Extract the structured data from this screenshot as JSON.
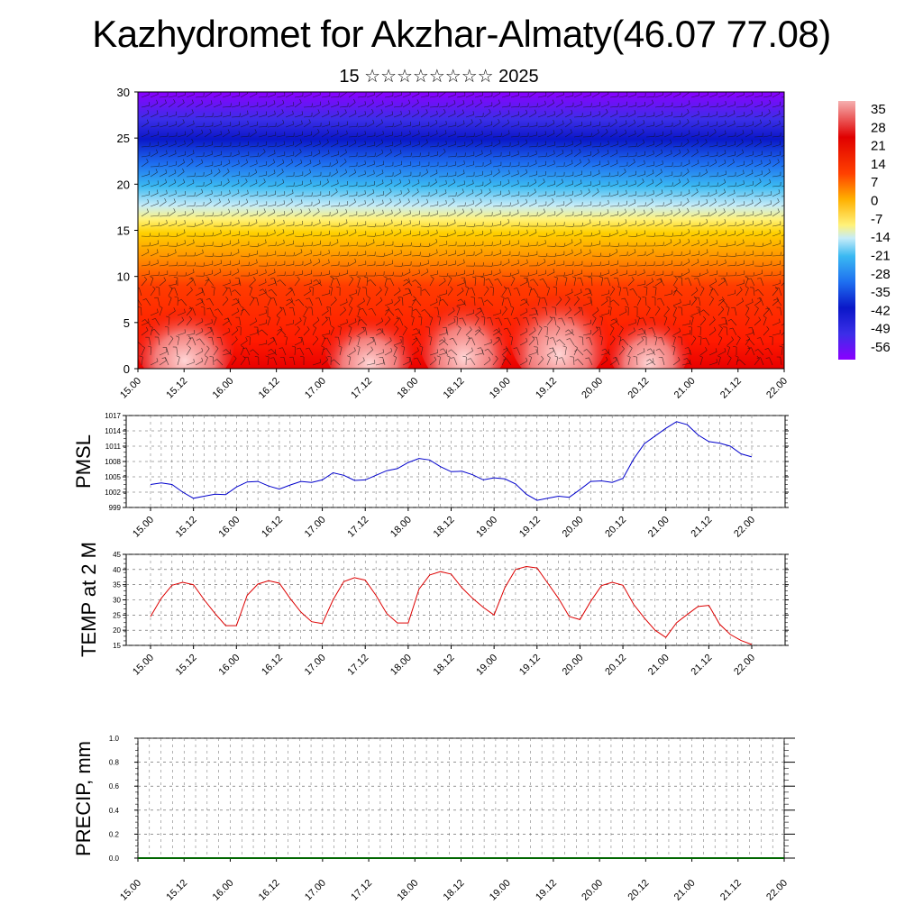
{
  "header": {
    "title": "Kazhydromet for Akzhar-Almaty(46.07 77.08)",
    "subtitle": "15 ☆☆☆☆☆☆☆☆ 2025"
  },
  "colorbar": {
    "labels": [
      "35",
      "28",
      "21",
      "14",
      "7",
      "0",
      "-7",
      "-14",
      "-21",
      "-28",
      "-35",
      "-42",
      "-49",
      "-56"
    ]
  },
  "chart_data": [
    {
      "type": "heatmap",
      "title": "",
      "ylabel": "",
      "ylim": [
        0,
        30
      ],
      "yticks": [
        "0",
        "5",
        "10",
        "15",
        "20",
        "25",
        "30"
      ],
      "xticks": [
        "15.00",
        "15.12",
        "16.00",
        "16.12",
        "17.00",
        "17.12",
        "18.00",
        "18.12",
        "19.00",
        "19.12",
        "20.00",
        "20.12",
        "21.00",
        "21.12",
        "22.00"
      ],
      "colorscale": [
        "#8b00ff",
        "#3b2ee8",
        "#0a17c8",
        "#1e6ff0",
        "#36b8f0",
        "#bfe8f5",
        "#fff06a",
        "#ffb000",
        "#ff4000",
        "#e00000",
        "#f5a0a0"
      ],
      "note_overlay": "wind barbs"
    },
    {
      "type": "line",
      "ylabel": "PMSL",
      "ylim": [
        999,
        1017
      ],
      "yticks": [
        "999",
        "1002",
        "1005",
        "1008",
        "1011",
        "1014",
        "1017"
      ],
      "xticks": [
        "15.00",
        "15.12",
        "16.00",
        "16.12",
        "17.00",
        "17.12",
        "18.00",
        "18.12",
        "19.00",
        "19.12",
        "20.00",
        "20.12",
        "21.00",
        "21.12",
        "22.00"
      ],
      "color": "#0000cc",
      "x": [
        0,
        3,
        6,
        9,
        12,
        15,
        18,
        21,
        24,
        27,
        30,
        33,
        36,
        39,
        42,
        45,
        48,
        51,
        54,
        57,
        60,
        63,
        66,
        69,
        72,
        75,
        78,
        81,
        84,
        87,
        90,
        93,
        96,
        99,
        102,
        105,
        108,
        111,
        114,
        117,
        120,
        123,
        126,
        129,
        132,
        135,
        138,
        141,
        144,
        147,
        150,
        153,
        156,
        159,
        162,
        165,
        168
      ],
      "values": [
        1003.5,
        1003.8,
        1003.5,
        1002.0,
        1000.8,
        1001.2,
        1001.6,
        1001.5,
        1003.0,
        1004.0,
        1004.1,
        1003.2,
        1002.6,
        1003.4,
        1004.1,
        1003.9,
        1004.4,
        1005.8,
        1005.3,
        1004.3,
        1004.4,
        1005.3,
        1006.2,
        1006.6,
        1007.8,
        1008.6,
        1008.3,
        1007.0,
        1006.0,
        1006.1,
        1005.4,
        1004.4,
        1004.8,
        1004.6,
        1003.6,
        1001.6,
        1000.4,
        1000.8,
        1001.2,
        1001.0,
        1002.5,
        1004.1,
        1004.2,
        1003.9,
        1004.7,
        1008.5,
        1011.5,
        1013.0,
        1014.5,
        1015.8,
        1015.2,
        1013.2,
        1011.9,
        1011.6,
        1011.0,
        1009.5,
        1008.9
      ]
    },
    {
      "type": "line",
      "ylabel": "TEMP at 2 M",
      "ylim": [
        15,
        45
      ],
      "yticks": [
        "15",
        "20",
        "25",
        "30",
        "35",
        "40",
        "45"
      ],
      "xticks": [
        "15.00",
        "15.12",
        "16.00",
        "16.12",
        "17.00",
        "17.12",
        "18.00",
        "18.12",
        "19.00",
        "19.12",
        "20.00",
        "20.12",
        "21.00",
        "21.12",
        "22.00"
      ],
      "color": "#dd0000",
      "x": [
        0,
        3,
        6,
        9,
        12,
        15,
        18,
        21,
        24,
        27,
        30,
        33,
        36,
        39,
        42,
        45,
        48,
        51,
        54,
        57,
        60,
        63,
        66,
        69,
        72,
        75,
        78,
        81,
        84,
        87,
        90,
        93,
        96,
        99,
        102,
        105,
        108,
        111,
        114,
        117,
        120,
        123,
        126,
        129,
        132,
        135,
        138,
        141,
        144,
        147,
        150,
        153,
        156,
        159,
        162,
        165,
        168
      ],
      "values": [
        24.5,
        30.5,
        34.8,
        35.8,
        35.0,
        30.0,
        25.5,
        21.5,
        21.5,
        31.5,
        35.2,
        36.3,
        35.5,
        30.5,
        26.0,
        22.8,
        22.2,
        30.0,
        36.0,
        37.3,
        36.5,
        31.5,
        25.5,
        22.4,
        22.4,
        33.5,
        38.2,
        39.3,
        38.5,
        34.0,
        30.5,
        27.5,
        25.0,
        34.0,
        40.0,
        41.0,
        40.5,
        35.5,
        30.5,
        24.5,
        23.5,
        29.5,
        34.7,
        35.8,
        34.8,
        28.5,
        24.0,
        20.0,
        17.6,
        22.5,
        25.2,
        27.8,
        28.2,
        22.0,
        18.6,
        16.6,
        15.3
      ]
    },
    {
      "type": "bar",
      "ylabel": "PRECIP, mm",
      "ylim": [
        0.0,
        1.0
      ],
      "yticks": [
        "0.0",
        "0.2",
        "0.4",
        "0.6",
        "0.8",
        "1.0"
      ],
      "xticks": [
        "15.00",
        "15.12",
        "16.00",
        "16.12",
        "17.00",
        "17.12",
        "18.00",
        "18.12",
        "19.00",
        "19.12",
        "20.00",
        "20.12",
        "21.00",
        "21.12",
        "22.00"
      ],
      "color": "#006600",
      "values": []
    }
  ]
}
